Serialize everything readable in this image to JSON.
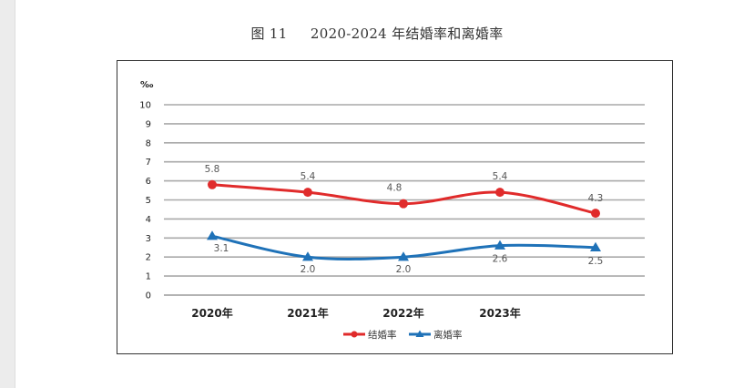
{
  "caption": {
    "figure_no": "图 11",
    "title": "2020-2024 年结婚率和离婚率"
  },
  "chart_data": {
    "type": "line",
    "title": "2020-2024 年结婚率和离婚率",
    "ylabel": "‰",
    "xlabel": "",
    "ylim": [
      0,
      10
    ],
    "yticks": [
      0,
      1,
      2,
      3,
      4,
      5,
      6,
      7,
      8,
      9,
      10
    ],
    "grid": true,
    "legend": "bottom",
    "categories": [
      "2020年",
      "2021年",
      "2022年",
      "2023年",
      ""
    ],
    "series": [
      {
        "name": "结婚率",
        "values": [
          5.8,
          5.4,
          4.8,
          5.4,
          4.3
        ],
        "labels": [
          "5.8",
          "5.4",
          "4.8",
          "5.4",
          "4.3"
        ],
        "color": "#e02b2b",
        "marker": "circle"
      },
      {
        "name": "离婚率",
        "values": [
          3.1,
          2.0,
          2.0,
          2.6,
          2.5
        ],
        "labels": [
          "3.1",
          "2.0",
          "2.0",
          "2.6",
          "2.5"
        ],
        "color": "#1f72b8",
        "marker": "triangle"
      }
    ]
  }
}
